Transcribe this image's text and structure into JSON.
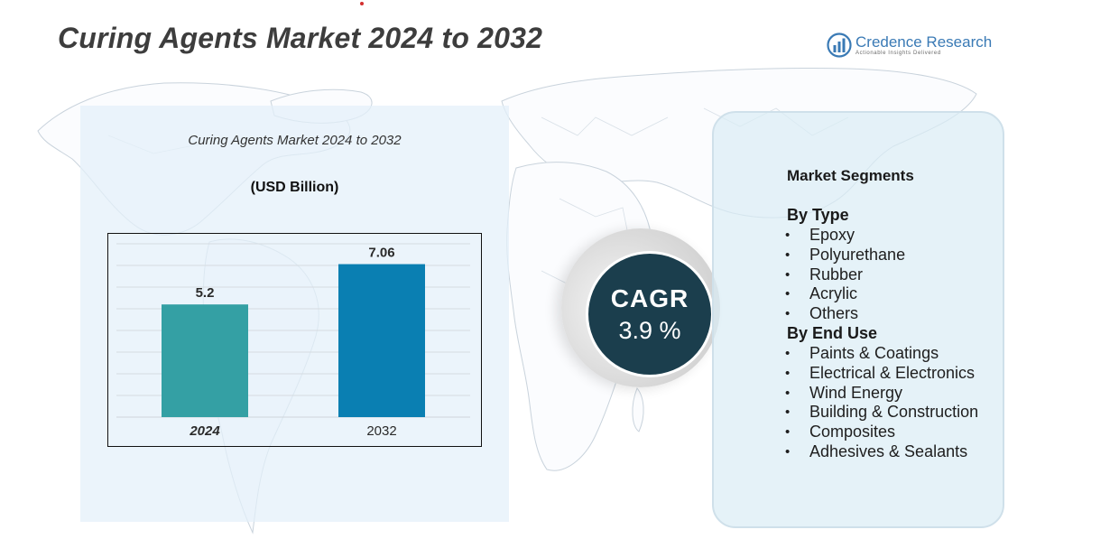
{
  "page": {
    "title": "Curing Agents Market 2024 to 2032"
  },
  "brand": {
    "name": "Credence Research",
    "tagline": "Actionable Insights Delivered",
    "logo_icon": "bar-chart-circle-icon",
    "color": "#3a7ab5"
  },
  "chart_data": {
    "type": "bar",
    "title": "Curing Agents Market 2024 to 2032",
    "unit_label": "(USD Billion)",
    "categories": [
      "2024",
      "2032"
    ],
    "values": [
      5.2,
      7.06
    ],
    "value_labels": [
      "5.2",
      "7.06"
    ],
    "bar_colors": [
      "#34a0a4",
      "#0a7fb2"
    ],
    "ylim": [
      0,
      8
    ],
    "grid": true,
    "legend": "none",
    "xlabel": "",
    "ylabel": ""
  },
  "cagr": {
    "label": "CAGR",
    "value": "3.9 %"
  },
  "segments": {
    "title": "Market Segments",
    "groups": [
      {
        "heading": "By Type",
        "items": [
          "Epoxy",
          "Polyurethane",
          "Rubber",
          "Acrylic",
          "Others"
        ]
      },
      {
        "heading": "By End Use",
        "items": [
          "Paints & Coatings",
          "Electrical & Electronics",
          "Wind Energy",
          "Building & Construction",
          "Composites",
          "Adhesives & Sealants"
        ]
      }
    ]
  }
}
